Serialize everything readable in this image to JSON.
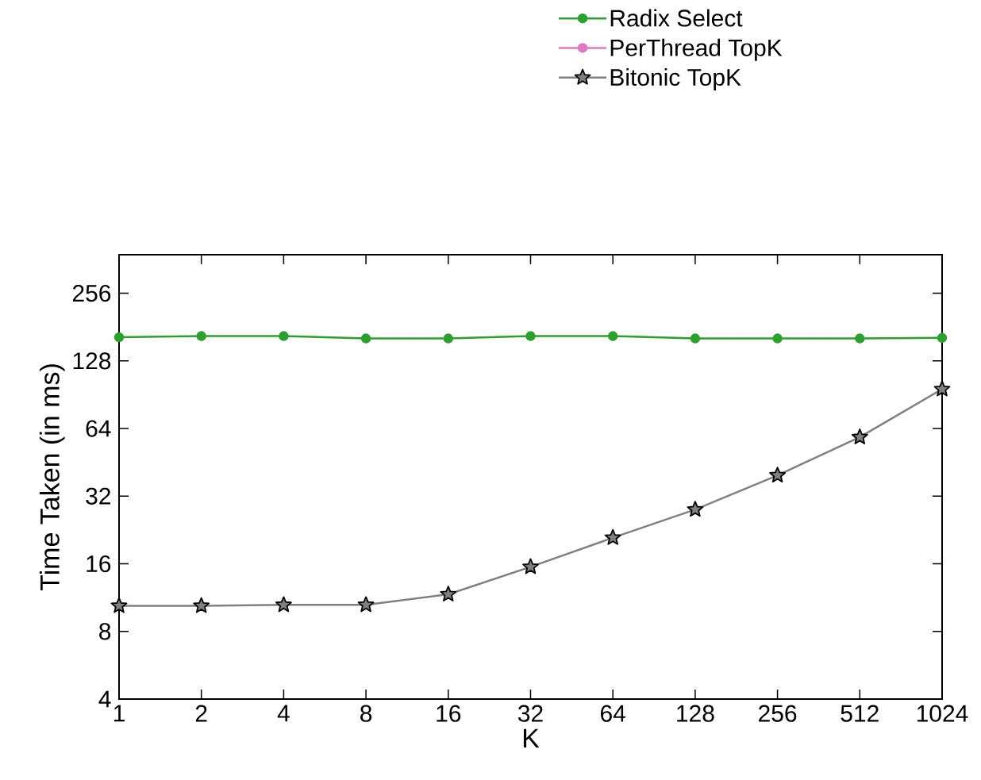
{
  "chart_data": {
    "type": "line",
    "xlabel": "K",
    "ylabel": "Time Taken (in ms)",
    "x": [
      1,
      2,
      4,
      8,
      16,
      32,
      64,
      128,
      256,
      512,
      1024
    ],
    "series": [
      {
        "name": "Radix Select",
        "color": "#2ca02c",
        "marker": "circle",
        "values": [
          163,
          165,
          165,
          161,
          161,
          165,
          165,
          161,
          161,
          161,
          162
        ]
      },
      {
        "name": "PerThread TopK",
        "color": "#e377c2",
        "marker": "circle",
        "values": [
          null,
          null,
          null,
          null,
          null,
          null,
          null,
          null,
          null,
          null,
          null
        ]
      },
      {
        "name": "Bitonic TopK",
        "color": "#808080",
        "marker": "star",
        "values": [
          10.4,
          10.4,
          10.5,
          10.5,
          11.7,
          15.5,
          20.9,
          27.9,
          39.6,
          58.6,
          95.8
        ]
      }
    ],
    "log": "xy",
    "xlim": [
      1,
      1024
    ],
    "ylim": [
      4,
      380
    ],
    "xticks": [
      1,
      2,
      4,
      8,
      16,
      32,
      64,
      128,
      256,
      512,
      1024
    ],
    "yticks": [
      4,
      8,
      16,
      32,
      64,
      128,
      256
    ],
    "legend": "top right",
    "line_style": "solid",
    "grid": false
  }
}
